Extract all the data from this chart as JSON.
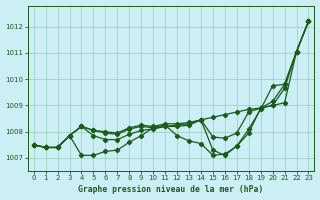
{
  "title": "Graphe pression niveau de la mer (hPa)",
  "xlim": [
    -0.5,
    23.5
  ],
  "ylim": [
    1006.5,
    1012.8
  ],
  "yticks": [
    1007,
    1008,
    1009,
    1010,
    1011,
    1012
  ],
  "xticks": [
    0,
    1,
    2,
    3,
    4,
    5,
    6,
    7,
    8,
    9,
    10,
    11,
    12,
    13,
    14,
    15,
    16,
    17,
    18,
    19,
    20,
    21,
    22,
    23
  ],
  "bg_color": "#cceef5",
  "grid_color": "#99ccbb",
  "line_color": "#1a5c1a",
  "series1": [
    1007.5,
    1007.4,
    1007.4,
    1007.85,
    1008.2,
    1007.85,
    1007.7,
    1007.7,
    1007.9,
    1008.05,
    1008.1,
    1008.2,
    1008.25,
    1008.3,
    1008.45,
    1008.55,
    1008.65,
    1008.75,
    1008.85,
    1008.9,
    1009.0,
    1009.1,
    1011.05,
    1012.2
  ],
  "series2": [
    1007.5,
    1007.4,
    1007.4,
    1007.85,
    1007.1,
    1007.1,
    1007.25,
    1007.3,
    1007.6,
    1007.85,
    1008.15,
    1008.25,
    1007.85,
    1007.65,
    1007.55,
    1007.1,
    1007.15,
    1007.45,
    1007.95,
    1008.9,
    1009.15,
    1009.8,
    1011.05,
    1012.2
  ],
  "series3": [
    1007.5,
    1007.4,
    1007.4,
    1007.85,
    1008.2,
    1008.05,
    1008.0,
    1007.95,
    1008.15,
    1008.25,
    1008.2,
    1008.3,
    1008.3,
    1008.35,
    1008.45,
    1007.8,
    1007.75,
    1007.95,
    1008.75,
    1008.9,
    1009.0,
    1009.65,
    1011.05,
    1012.2
  ],
  "series4": [
    1007.5,
    1007.4,
    1007.4,
    1007.85,
    1008.2,
    1008.05,
    1007.95,
    1007.9,
    1008.1,
    1008.2,
    1008.15,
    1008.2,
    1008.2,
    1008.25,
    1008.45,
    1007.3,
    1007.1,
    1007.45,
    1008.1,
    1008.85,
    1009.75,
    1009.8,
    1011.05,
    1012.2
  ]
}
